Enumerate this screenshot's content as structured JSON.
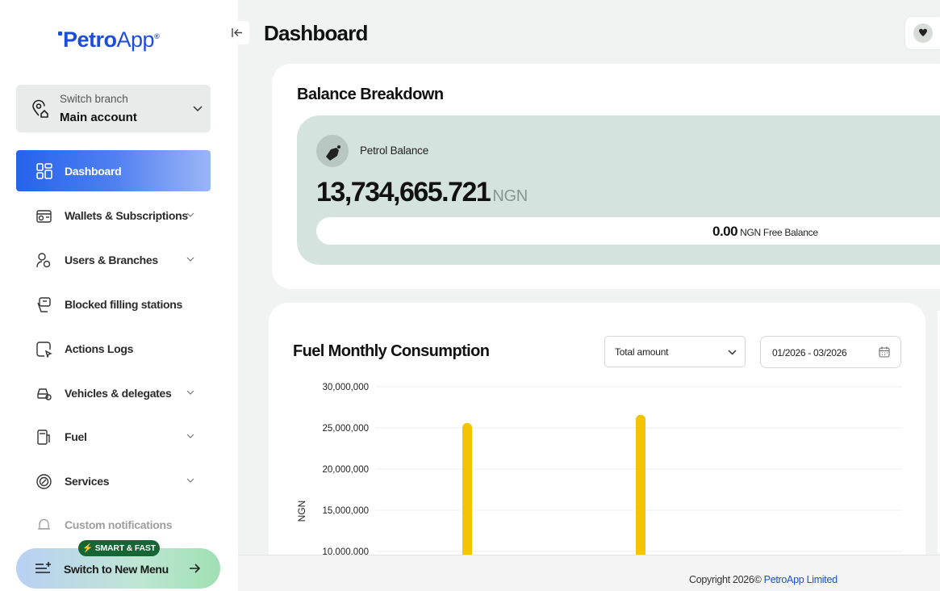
{
  "sidebar": {
    "logo_main": "Petro",
    "logo_app": "App",
    "logo_mark": "®",
    "branch_label": "Switch branch",
    "branch_value": "Main account",
    "active_item": "Dashboard",
    "items": [
      {
        "label": "Wallets & Subscriptions",
        "icon": "wallet-icon",
        "has_submenu": true
      },
      {
        "label": "Users & Branches",
        "icon": "users-icon",
        "has_submenu": true
      },
      {
        "label": "Blocked filling stations",
        "icon": "station-icon",
        "has_submenu": false
      },
      {
        "label": "Actions Logs",
        "icon": "logs-icon",
        "has_submenu": false
      },
      {
        "label": "Vehicles & delegates",
        "icon": "vehicle-icon",
        "has_submenu": true
      },
      {
        "label": "Fuel",
        "icon": "fuel-icon",
        "has_submenu": true
      },
      {
        "label": "Services",
        "icon": "services-icon",
        "has_submenu": true
      },
      {
        "label": "Custom notifications",
        "icon": "bell-icon",
        "has_submenu": false
      }
    ],
    "new_menu_badge": "⚡ SMART & FAST",
    "new_menu_label": "Switch to New Menu"
  },
  "header": {
    "title": "Dashboard"
  },
  "balance": {
    "title": "Balance Breakdown",
    "petrol_label": "Petrol Balance",
    "petrol_amount": "13,734,665.721",
    "currency": "NGN",
    "free_amount": "0.00",
    "free_label": " NGN Free Balance"
  },
  "chart_section": {
    "title": "Fuel Monthly Consumption",
    "select_value": "Total amount",
    "date_range": "01/2026 - 03/2026"
  },
  "chart_data": {
    "type": "bar",
    "ylabel": "NGN",
    "y_ticks": [
      "30,000,000",
      "25,000,000",
      "20,000,000",
      "15,000,000",
      "10,000,000"
    ],
    "ylim": [
      10000000,
      30000000
    ],
    "series": [
      {
        "values": [
          25600000,
          26600000
        ]
      }
    ],
    "bar_color": "#f5c400"
  },
  "footer": {
    "copyright": "Copyright 2026© ",
    "company": "PetroApp Limited"
  },
  "colors": {
    "brand": "#1d4ed8",
    "petrol_box": "#d5e3df",
    "badge": "#166534"
  }
}
